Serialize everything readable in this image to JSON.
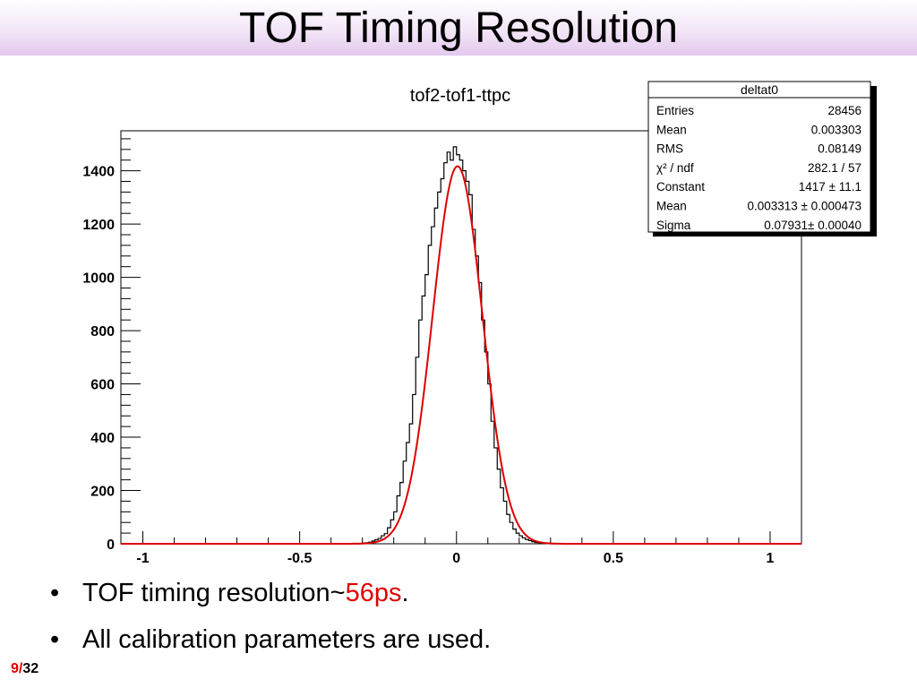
{
  "slide": {
    "title": "TOF Timing Resolution",
    "bullets": [
      {
        "text": "TOF timing resolution~",
        "highlight": "56ps",
        "tail": "."
      },
      {
        "text": "All calibration parameters are used."
      }
    ],
    "page_current": "9",
    "page_sep": "/",
    "page_total": "32",
    "accent_color": "#e00000"
  },
  "chart_data": {
    "type": "histogram",
    "title": "tof2-tof1-ttpc",
    "xlabel": "",
    "ylabel": "",
    "xlim": [
      -1.07,
      1.1
    ],
    "ylim": [
      0,
      1550
    ],
    "x_ticks": [
      -1,
      -0.5,
      0,
      0.5,
      1
    ],
    "x_tick_labels": [
      "-1",
      "-0.5",
      "0",
      "0.5",
      "1"
    ],
    "y_ticks": [
      0,
      200,
      400,
      600,
      800,
      1000,
      1200,
      1400
    ],
    "y_tick_labels": [
      "0",
      "200",
      "400",
      "600",
      "800",
      "1000",
      "1200",
      "1400"
    ],
    "histogram": {
      "color": "#000000",
      "bin_width": 0.01,
      "bin_low_edges": [
        -0.3,
        -0.29,
        -0.28,
        -0.27,
        -0.26,
        -0.25,
        -0.24,
        -0.23,
        -0.22,
        -0.21,
        -0.2,
        -0.19,
        -0.18,
        -0.17,
        -0.16,
        -0.15,
        -0.14,
        -0.13,
        -0.12,
        -0.11,
        -0.1,
        -0.09,
        -0.08,
        -0.07,
        -0.06,
        -0.05,
        -0.04,
        -0.03,
        -0.02,
        -0.01,
        0.0,
        0.01,
        0.02,
        0.03,
        0.04,
        0.05,
        0.06,
        0.07,
        0.08,
        0.09,
        0.1,
        0.11,
        0.12,
        0.13,
        0.14,
        0.15,
        0.16,
        0.17,
        0.18,
        0.19,
        0.2,
        0.21,
        0.22,
        0.23,
        0.24,
        0.25,
        0.26,
        0.27,
        0.28,
        0.29,
        0.3
      ],
      "counts": [
        3,
        4,
        6,
        10,
        15,
        20,
        30,
        38,
        60,
        90,
        120,
        180,
        230,
        310,
        380,
        450,
        560,
        700,
        840,
        930,
        1010,
        1120,
        1190,
        1260,
        1320,
        1370,
        1430,
        1470,
        1440,
        1490,
        1460,
        1440,
        1400,
        1360,
        1310,
        1180,
        1080,
        980,
        840,
        720,
        600,
        460,
        360,
        280,
        210,
        160,
        110,
        80,
        55,
        40,
        30,
        22,
        16,
        12,
        8,
        5,
        4,
        3,
        2,
        1,
        0
      ]
    },
    "fit": {
      "color": "#dd0000",
      "function": "gaus",
      "constant": 1417,
      "mean": 0.003313,
      "sigma": 0.07931
    },
    "stats_box": {
      "name": "deltat0",
      "rows": [
        {
          "label": "Entries",
          "value": "28456"
        },
        {
          "label": "Mean",
          "value": "0.003303"
        },
        {
          "label": "RMS",
          "value": "0.08149"
        },
        {
          "label": "χ² / ndf",
          "value": "282.1 / 57"
        },
        {
          "label": "Constant",
          "value": "1417 ± 11.1"
        },
        {
          "label": "Mean",
          "value": "0.003313 ± 0.000473"
        },
        {
          "label": "Sigma",
          "value": "0.07931± 0.00040"
        }
      ]
    },
    "grid": false
  }
}
